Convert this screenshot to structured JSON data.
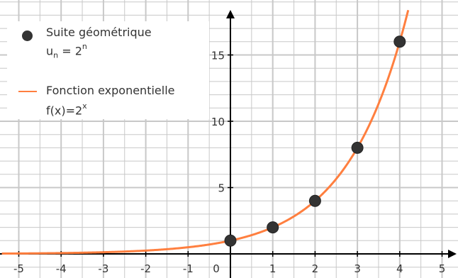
{
  "chart_data": {
    "type": "line",
    "xlim": [
      -5.4,
      5.3
    ],
    "ylim": [
      -0.8,
      18.5
    ],
    "xticks": [
      -5,
      -4,
      -3,
      -2,
      -1,
      0,
      1,
      2,
      3,
      4,
      5
    ],
    "yticks": [
      5,
      10,
      15
    ],
    "grid": true,
    "legend_position": "top-left",
    "colors": {
      "points": "#333333",
      "curve": "#ff7f3f",
      "grid": "#c8c8c8",
      "axis": "#000000"
    },
    "series": [
      {
        "name": "Suite géométrique u_n = 2^n",
        "kind": "scatter",
        "x": [
          0,
          1,
          2,
          3,
          4
        ],
        "y": [
          1,
          2,
          4,
          8,
          16
        ]
      },
      {
        "name": "Fonction exponentielle f(x)=2^x",
        "kind": "line",
        "function": "2^x",
        "x_range": [
          -5.4,
          4.2
        ]
      }
    ]
  },
  "legend": {
    "seq_title": "Suite géométrique",
    "seq_formula_prefix": "u",
    "seq_formula_sub": "n",
    "seq_formula_mid": " = 2",
    "seq_formula_sup": "n",
    "fn_title": "Fonction exponentielle",
    "fn_formula_prefix": "f(x)=2",
    "fn_formula_sup": "x"
  }
}
